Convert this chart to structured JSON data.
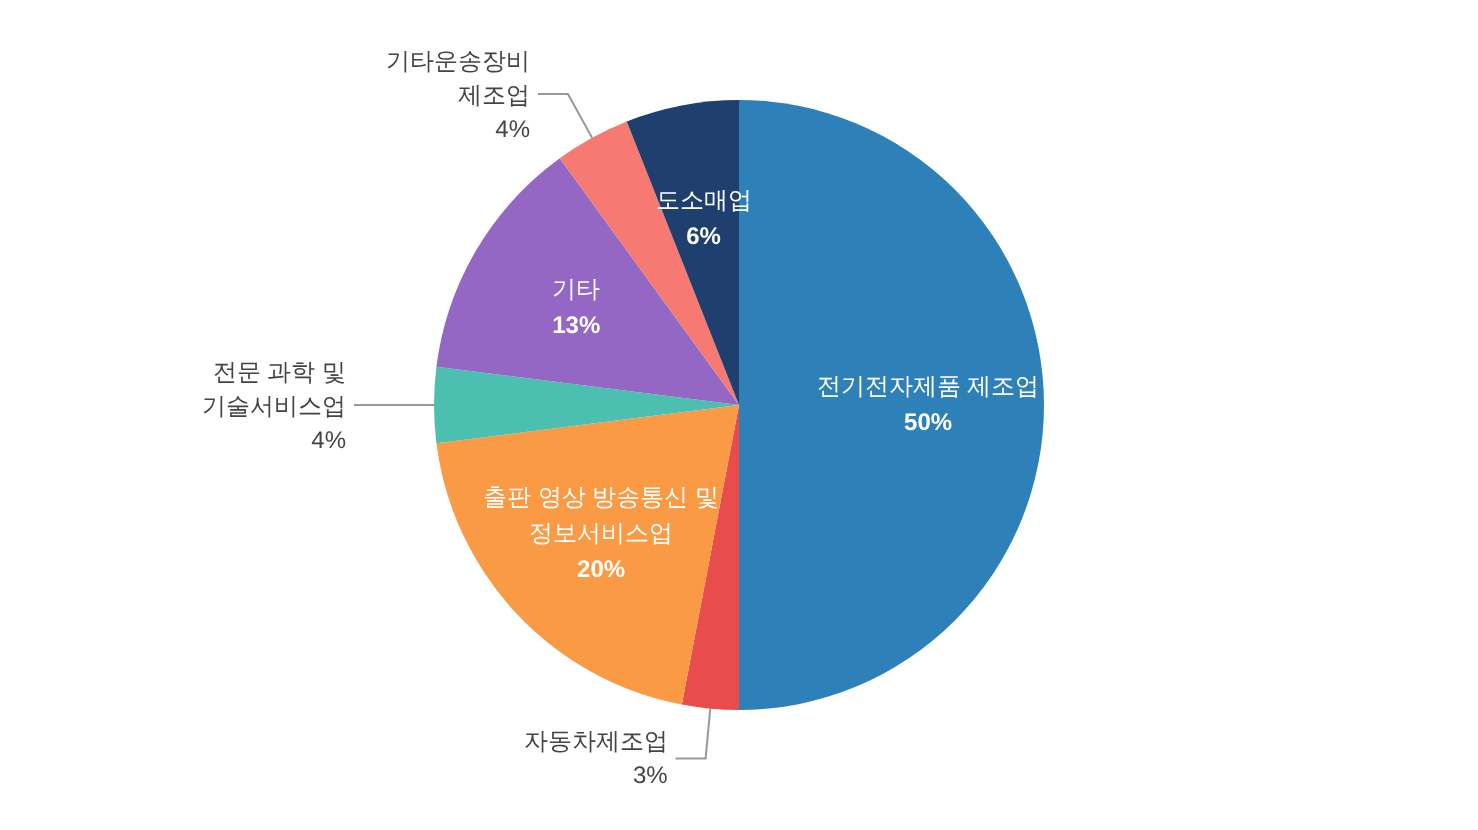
{
  "chart_data": {
    "type": "pie",
    "categories": [
      "전기전자제품 제조업",
      "자동차제조업",
      "출판 영상 방송통신 및 정보서비스업",
      "전문 과학 및 기술서비스업",
      "기타",
      "기타운송장비 제조업",
      "도소매업"
    ],
    "values": [
      50,
      3,
      20,
      4,
      13,
      4,
      6
    ],
    "value_labels": [
      "50%",
      "3%",
      "20%",
      "4%",
      "13%",
      "4%",
      "6%"
    ],
    "colors": [
      "#2e80b9",
      "#e84c4c",
      "#fb9a45",
      "#4cc0b0",
      "#9467c4",
      "#f77a72",
      "#1f3f6e"
    ],
    "legend": false
  }
}
